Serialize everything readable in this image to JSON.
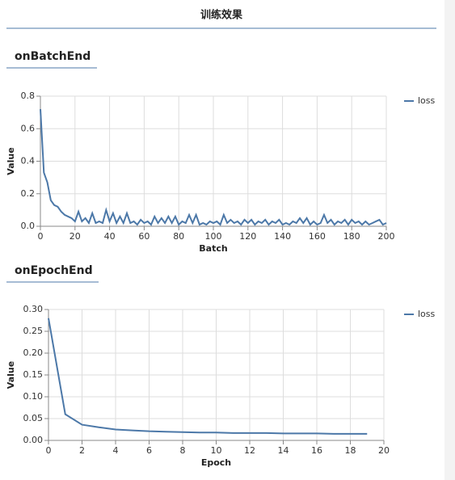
{
  "header": {
    "title": "训练效果"
  },
  "chart_data": [
    {
      "type": "line",
      "title": "onBatchEnd",
      "xlabel": "Batch",
      "ylabel": "Value",
      "x": [
        0,
        2,
        4,
        6,
        8,
        10,
        12,
        14,
        16,
        18,
        20,
        22,
        24,
        26,
        28,
        30,
        32,
        34,
        36,
        38,
        40,
        42,
        44,
        46,
        48,
        50,
        52,
        54,
        56,
        58,
        60,
        62,
        64,
        66,
        68,
        70,
        72,
        74,
        76,
        78,
        80,
        82,
        84,
        86,
        88,
        90,
        92,
        94,
        96,
        98,
        100,
        102,
        104,
        106,
        108,
        110,
        112,
        114,
        116,
        118,
        120,
        122,
        124,
        126,
        128,
        130,
        132,
        134,
        136,
        138,
        140,
        142,
        144,
        146,
        148,
        150,
        152,
        154,
        156,
        158,
        160,
        162,
        164,
        166,
        168,
        170,
        172,
        174,
        176,
        178,
        180,
        182,
        184,
        186,
        188,
        190,
        192,
        194,
        196,
        198,
        200
      ],
      "series": [
        {
          "name": "loss",
          "color": "#4c78a8",
          "values": [
            0.72,
            0.33,
            0.27,
            0.16,
            0.13,
            0.12,
            0.09,
            0.07,
            0.06,
            0.05,
            0.03,
            0.09,
            0.03,
            0.05,
            0.02,
            0.08,
            0.02,
            0.03,
            0.02,
            0.1,
            0.03,
            0.08,
            0.02,
            0.06,
            0.02,
            0.08,
            0.02,
            0.03,
            0.01,
            0.04,
            0.02,
            0.03,
            0.01,
            0.06,
            0.02,
            0.05,
            0.02,
            0.06,
            0.02,
            0.06,
            0.01,
            0.03,
            0.02,
            0.07,
            0.02,
            0.07,
            0.01,
            0.02,
            0.01,
            0.03,
            0.02,
            0.03,
            0.01,
            0.07,
            0.02,
            0.04,
            0.02,
            0.03,
            0.01,
            0.04,
            0.02,
            0.04,
            0.01,
            0.03,
            0.02,
            0.04,
            0.01,
            0.03,
            0.02,
            0.04,
            0.01,
            0.02,
            0.01,
            0.03,
            0.02,
            0.05,
            0.02,
            0.05,
            0.01,
            0.03,
            0.01,
            0.02,
            0.07,
            0.02,
            0.04,
            0.01,
            0.03,
            0.02,
            0.04,
            0.01,
            0.04,
            0.02,
            0.03,
            0.01,
            0.03,
            0.01,
            0.02,
            0.03,
            0.04,
            0.01,
            0.02
          ]
        }
      ],
      "xlim": [
        0,
        200
      ],
      "ylim": [
        0,
        0.8
      ],
      "xticks": [
        0,
        20,
        40,
        60,
        80,
        100,
        120,
        140,
        160,
        180,
        200
      ],
      "yticks": [
        {
          "value": 0,
          "label": "0.0"
        },
        0.2,
        0.4,
        0.6,
        0.8
      ],
      "grid": true
    },
    {
      "type": "line",
      "title": "onEpochEnd",
      "xlabel": "Epoch",
      "ylabel": "Value",
      "x": [
        0,
        1,
        2,
        3,
        4,
        5,
        6,
        7,
        8,
        9,
        10,
        11,
        12,
        13,
        14,
        15,
        16,
        17,
        18,
        19
      ],
      "series": [
        {
          "name": "loss",
          "color": "#4c78a8",
          "values": [
            0.28,
            0.06,
            0.036,
            0.03,
            0.025,
            0.023,
            0.021,
            0.02,
            0.019,
            0.018,
            0.018,
            0.017,
            0.017,
            0.017,
            0.016,
            0.016,
            0.016,
            0.015,
            0.015,
            0.015
          ]
        }
      ],
      "xlim": [
        0,
        20
      ],
      "ylim": [
        0,
        0.3
      ],
      "xticks": [
        0,
        2,
        4,
        6,
        8,
        10,
        12,
        14,
        16,
        18,
        20
      ],
      "yticks": [
        {
          "value": 0,
          "label": "0.00"
        },
        0.05,
        {
          "value": 0.1,
          "label": "0.10"
        },
        0.15,
        {
          "value": 0.2,
          "label": "0.20"
        },
        0.25,
        {
          "value": 0.3,
          "label": "0.30"
        }
      ],
      "grid": true
    }
  ]
}
